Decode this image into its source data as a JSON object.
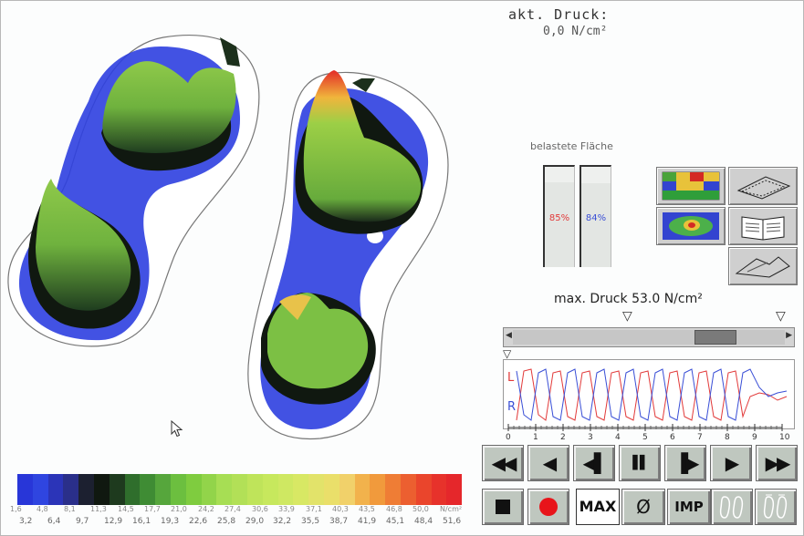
{
  "pressure": {
    "label": "akt. Druck:",
    "value": "0,0 N/cm²"
  },
  "area": {
    "title": "belastete Fläche",
    "left_percent": "85%",
    "right_percent": "84%",
    "left_fraction": 0.85,
    "right_fraction": 0.84
  },
  "max_pressure": "max. Druck 53.0 N/cm²",
  "timeline": {
    "left_label": "L",
    "right_label": "R",
    "ticks": [
      "0",
      "1",
      "2",
      "3",
      "4",
      "5",
      "6",
      "7",
      "8",
      "9",
      "10"
    ],
    "left_color": "#e23a3a",
    "right_color": "#3a4fd6"
  },
  "toolbar": {
    "max_label": "MAX",
    "avg_label": "Ø",
    "imp_label": "IMP"
  },
  "icons": {
    "rewind": "fast-rewind-icon",
    "prev": "step-back-icon",
    "prev_frame": "frame-back-icon",
    "pause": "pause-icon",
    "next_frame": "frame-forward-icon",
    "play": "play-icon",
    "forward": "fast-forward-icon",
    "stop": "stop-icon",
    "record": "record-icon"
  },
  "colors": {
    "record": "#e8141a",
    "button": "#bfc7bf",
    "panel_red": "#e23a3a",
    "panel_blue": "#3a4fd6"
  },
  "scale": {
    "colors": [
      "#2836d8",
      "#2f45e0",
      "#2b34b8",
      "#2a2f8a",
      "#1c2030",
      "#101810",
      "#1e3a1e",
      "#2f6e2c",
      "#3f8c34",
      "#56a63c",
      "#6cbf3f",
      "#7fcc3f",
      "#92d44a",
      "#a7de54",
      "#b2e057",
      "#bfe45a",
      "#c7e85d",
      "#cfe862",
      "#d8e864",
      "#e2e36a",
      "#eadf6a",
      "#f1d16a",
      "#f2b24c",
      "#f19a3c",
      "#ef7d35",
      "#ec5f30",
      "#ea452c",
      "#e7322b",
      "#e5272b"
    ],
    "top_labels": [
      "1,6",
      "4,8",
      "8,1",
      "11,3",
      "14,5",
      "17,7",
      "21,0",
      "24,2",
      "27,4",
      "30,6",
      "33,9",
      "37,1",
      "40,3",
      "43,5",
      "46,8",
      "50,0",
      "N/cm²"
    ],
    "bottom_labels": [
      "3,2",
      "6,4",
      "9,7",
      "12,9",
      "16,1",
      "19,3",
      "22,6",
      "25,8",
      "29,0",
      "32,2",
      "35,5",
      "38,7",
      "41,9",
      "45,1",
      "48,4",
      "51,6"
    ]
  }
}
